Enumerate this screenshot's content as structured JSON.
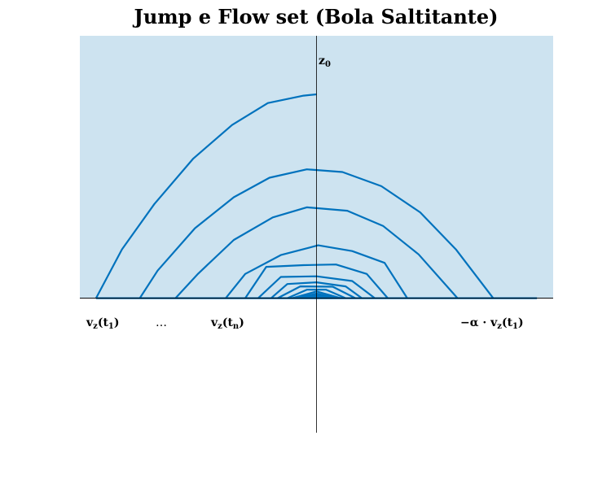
{
  "title": "Jump e Flow set (Bola Saltitante)",
  "labels": {
    "z0_main": "z",
    "z0_sub": "0",
    "vz_t1_main": "v",
    "vz_t1_sub": "z",
    "vz_t1_arg": "(t",
    "vz_t1_arg_sub": "1",
    "vz_t1_close": ")",
    "dots": "…",
    "vz_tn_main": "v",
    "vz_tn_sub": "z",
    "vz_tn_arg": "(t",
    "vz_tn_arg_sub": "n",
    "vz_tn_close": ")",
    "neg_alpha": "−α · v",
    "neg_alpha_sub": "z",
    "neg_alpha_arg": "(t",
    "neg_alpha_arg_sub": "1",
    "neg_alpha_close": ")"
  },
  "colors": {
    "region_fill": "#cde3f0",
    "curve": "#0072bd",
    "axis": "#000000"
  },
  "chart_data": {
    "type": "line",
    "x_axis": {
      "min": -7.3,
      "max": 7.3
    },
    "y_axis": {
      "min": -4.0,
      "max": 7.8
    },
    "series": [
      {
        "x": [
          -6.8,
          -6.0,
          -5.0,
          -3.8,
          -2.6,
          -1.5,
          -0.4,
          0.0
        ],
        "y": [
          0,
          1.45,
          2.8,
          4.15,
          5.15,
          5.8,
          6.02,
          6.06
        ]
      },
      {
        "x": [
          -5.45,
          -4.9,
          -3.75,
          -2.55,
          -1.45,
          -0.3,
          0.8,
          2.0,
          3.2,
          4.3,
          5.45
        ],
        "y": [
          0,
          0.82,
          2.08,
          3.0,
          3.58,
          3.83,
          3.75,
          3.33,
          2.55,
          1.45,
          0
        ]
      },
      {
        "x": [
          -4.35,
          -3.65,
          -2.55,
          -1.35,
          -0.3,
          0.95,
          2.05,
          3.15,
          4.35
        ],
        "y": [
          0,
          0.73,
          1.73,
          2.4,
          2.7,
          2.6,
          2.15,
          1.3,
          0
        ]
      },
      {
        "x": [
          -2.8,
          -2.2,
          -1.1,
          0.05,
          1.1,
          2.1,
          2.8
        ],
        "y": [
          0,
          0.72,
          1.28,
          1.57,
          1.4,
          1.05,
          0
        ]
      },
      {
        "x": [
          -2.2,
          -1.55,
          -0.4,
          0.6,
          1.55,
          2.2
        ],
        "y": [
          0,
          0.93,
          0.98,
          1.0,
          0.72,
          0
        ]
      },
      {
        "x": [
          -1.8,
          -1.1,
          0,
          1.1,
          1.8
        ],
        "y": [
          0,
          0.63,
          0.65,
          0.51,
          0
        ]
      },
      {
        "x": [
          -1.4,
          -0.9,
          0,
          0.9,
          1.4
        ],
        "y": [
          0,
          0.42,
          0.47,
          0.35,
          0
        ]
      },
      {
        "x": [
          -1.2,
          -0.5,
          0.5,
          1.2
        ],
        "y": [
          0,
          0.35,
          0.34,
          0
        ]
      },
      {
        "x": [
          -0.9,
          -0.3,
          0.3,
          0.9
        ],
        "y": [
          0,
          0.25,
          0.25,
          0
        ]
      },
      {
        "x": [
          -0.75,
          0,
          0.75
        ],
        "y": [
          0,
          0.2,
          0
        ]
      },
      {
        "x": [
          -0.6,
          0,
          0.6
        ],
        "y": [
          0,
          0.14,
          0
        ]
      },
      {
        "x": [
          -0.45,
          0,
          0.45
        ],
        "y": [
          0,
          0.1,
          0
        ]
      },
      {
        "x": [
          -0.3,
          0,
          0.3
        ],
        "y": [
          0,
          0.06,
          0
        ]
      },
      {
        "x": [
          -0.15,
          0,
          0.15
        ],
        "y": [
          0,
          0.03,
          0
        ]
      },
      {
        "x": [
          -6.8,
          6.8
        ],
        "y": [
          0,
          0
        ]
      }
    ],
    "flow_region_y_range": [
      0,
      7.8
    ],
    "grid": false,
    "legend": "none"
  }
}
